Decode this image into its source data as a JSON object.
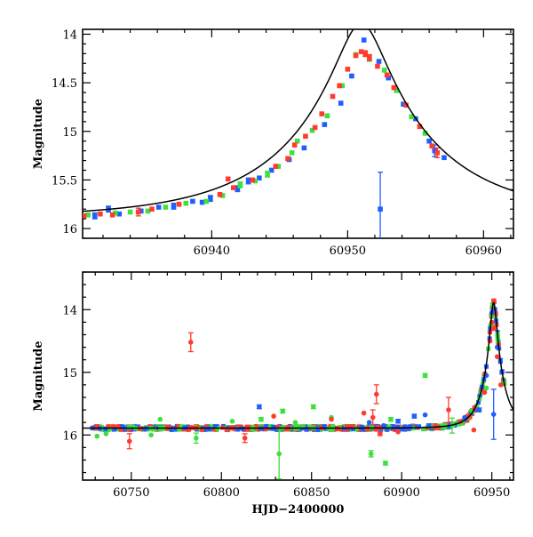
{
  "chart_data": [
    {
      "type": "scatter",
      "title": "",
      "xlabel": "",
      "ylabel": "Magnitude",
      "xlim": [
        60930.5,
        60962.2
      ],
      "ylim": [
        16.1,
        13.95
      ],
      "y_inverted": true,
      "x_ticks": [
        60940,
        60950,
        60960
      ],
      "y_ticks": [
        14,
        14.5,
        15,
        15.5,
        16
      ],
      "y_tick_labels": [
        "14",
        "14.5",
        "15",
        "15.5",
        "16"
      ],
      "series": [
        {
          "color": "#1f5fff",
          "points": [
            [
              60931.4,
              15.87,
              0.03
            ],
            [
              60932.4,
              15.8,
              0.03
            ],
            [
              60933.2,
              15.85,
              0.02
            ],
            [
              60934.8,
              15.82,
              0.02
            ],
            [
              60936.1,
              15.78,
              0.02
            ],
            [
              60937.2,
              15.77,
              0.03
            ],
            [
              60938.6,
              15.72,
              0.02
            ],
            [
              60939.3,
              15.73,
              0.02
            ],
            [
              60939.9,
              15.69,
              0.03
            ],
            [
              60941.9,
              15.59,
              0.03
            ],
            [
              60942.7,
              15.51,
              0.03
            ],
            [
              60943.5,
              15.48,
              0.02
            ],
            [
              60944.4,
              15.4,
              0.02
            ],
            [
              60945.7,
              15.29,
              0.02
            ],
            [
              60946.8,
              15.17,
              0.02
            ],
            [
              60948.3,
              14.93,
              0.02
            ],
            [
              60949.5,
              14.71,
              0.02
            ],
            [
              60950.3,
              14.43,
              0.02
            ],
            [
              60951.2,
              14.06,
              0.02
            ],
            [
              60952.3,
              14.28,
              0.02
            ],
            [
              60952.4,
              15.8,
              0.38
            ],
            [
              60953.0,
              14.45,
              0.02
            ],
            [
              60954.1,
              14.72,
              0.02
            ],
            [
              60955.0,
              14.87,
              0.02
            ],
            [
              60956.0,
              15.1,
              0.02
            ],
            [
              60956.4,
              15.2,
              0.06
            ],
            [
              60957.1,
              15.27,
              0.02
            ]
          ]
        },
        {
          "color": "#3ee03e",
          "points": [
            [
              60930.9,
              15.86,
              0.02
            ],
            [
              60932.9,
              15.84,
              0.02
            ],
            [
              60934.0,
              15.83,
              0.02
            ],
            [
              60935.3,
              15.82,
              0.02
            ],
            [
              60936.6,
              15.78,
              0.02
            ],
            [
              60938.1,
              15.74,
              0.02
            ],
            [
              60939.6,
              15.72,
              0.02
            ],
            [
              60940.8,
              15.66,
              0.02
            ],
            [
              60942.1,
              15.55,
              0.03
            ],
            [
              60943.2,
              15.51,
              0.02
            ],
            [
              60944.1,
              15.44,
              0.03
            ],
            [
              60944.9,
              15.36,
              0.02
            ],
            [
              60945.9,
              15.22,
              0.02
            ],
            [
              60946.3,
              15.1,
              0.02
            ],
            [
              60947.4,
              14.99,
              0.02
            ],
            [
              60948.5,
              14.84,
              0.02
            ],
            [
              60949.6,
              14.53,
              0.02
            ],
            [
              60950.6,
              14.21,
              0.02
            ],
            [
              60951.6,
              14.26,
              0.02
            ],
            [
              60952.7,
              14.37,
              0.02
            ],
            [
              60953.6,
              14.58,
              0.02
            ],
            [
              60954.7,
              14.85,
              0.02
            ],
            [
              60955.7,
              15.02,
              0.02
            ]
          ]
        },
        {
          "color": "#ff3b2f",
          "points": [
            [
              60930.6,
              15.87,
              0.02
            ],
            [
              60931.8,
              15.85,
              0.02
            ],
            [
              60932.7,
              15.86,
              0.02
            ],
            [
              60934.6,
              15.83,
              0.04
            ],
            [
              60935.6,
              15.8,
              0.02
            ],
            [
              60937.6,
              15.75,
              0.02
            ],
            [
              60940.6,
              15.65,
              0.02
            ],
            [
              60941.2,
              15.49,
              0.02
            ],
            [
              60941.6,
              15.58,
              0.02
            ],
            [
              60943.0,
              15.5,
              0.02
            ],
            [
              60944.7,
              15.36,
              0.02
            ],
            [
              60945.6,
              15.28,
              0.02
            ],
            [
              60946.1,
              15.14,
              0.02
            ],
            [
              60946.9,
              15.05,
              0.02
            ],
            [
              60947.6,
              14.96,
              0.02
            ],
            [
              60948.1,
              14.82,
              0.02
            ],
            [
              60948.9,
              14.64,
              0.02
            ],
            [
              60949.4,
              14.53,
              0.02
            ],
            [
              60950.0,
              14.36,
              0.02
            ],
            [
              60950.6,
              14.22,
              0.02
            ],
            [
              60951.0,
              14.18,
              0.02
            ],
            [
              60951.3,
              14.2,
              0.03
            ],
            [
              60951.6,
              14.24,
              0.03
            ],
            [
              60952.2,
              14.33,
              0.02
            ],
            [
              60952.9,
              14.42,
              0.02
            ],
            [
              60953.4,
              14.55,
              0.02
            ],
            [
              60954.3,
              14.73,
              0.02
            ],
            [
              60955.3,
              14.95,
              0.02
            ],
            [
              60956.2,
              15.15,
              0.02
            ],
            [
              60956.6,
              15.22,
              0.05
            ]
          ]
        }
      ],
      "model_curve": true
    },
    {
      "type": "scatter",
      "title": "",
      "xlabel": "HJD−2400000",
      "ylabel": "Magnitude",
      "xlim": [
        60723,
        60962
      ],
      "ylim": [
        16.72,
        13.4
      ],
      "y_inverted": true,
      "x_ticks": [
        60750,
        60800,
        60850,
        60900,
        60950
      ],
      "y_ticks": [
        14,
        15,
        16
      ],
      "y_tick_labels": [
        "14",
        "15",
        "16"
      ],
      "series": [
        {
          "color": "#1f5fff",
          "points": [
            [
              60821,
              15.55,
              0.03
            ],
            [
              60882,
              15.8,
              0.02
            ],
            [
              60890,
              15.85,
              0.02
            ],
            [
              60898,
              15.78,
              0.03
            ],
            [
              60907,
              15.7,
              0.03
            ],
            [
              60913,
              15.68,
              0.02
            ],
            [
              60935,
              15.72,
              0.02
            ],
            [
              60943,
              15.6,
              0.03
            ],
            [
              60947,
              15.05,
              0.02
            ],
            [
              60950,
              14.05,
              0.02
            ],
            [
              60951,
              15.67,
              0.4
            ],
            [
              60953,
              14.6,
              0.02
            ]
          ]
        },
        {
          "color": "#3ee03e",
          "points": [
            [
              60731,
              16.02,
              0.02
            ],
            [
              60736,
              15.98,
              0.02
            ],
            [
              60761,
              16.0,
              0.02
            ],
            [
              60766,
              15.75,
              0.02
            ],
            [
              60786,
              16.05,
              0.08
            ],
            [
              60806,
              15.78,
              0.02
            ],
            [
              60822,
              15.75,
              0.03
            ],
            [
              60832,
              16.3,
              0.4
            ],
            [
              60834,
              15.62,
              0.03
            ],
            [
              60841,
              15.8,
              0.02
            ],
            [
              60851,
              15.55,
              0.03
            ],
            [
              60861,
              15.72,
              0.02
            ],
            [
              60883,
              16.3,
              0.05
            ],
            [
              60891,
              16.45,
              0.03
            ],
            [
              60894,
              15.75,
              0.03
            ],
            [
              60913,
              15.05,
              0.03
            ],
            [
              60928,
              15.85,
              0.12
            ],
            [
              60947,
              15.25,
              0.02
            ],
            [
              60950,
              14.25,
              0.02
            ]
          ]
        },
        {
          "color": "#ff3b2f",
          "points": [
            [
              60749,
              16.1,
              0.12
            ],
            [
              60783,
              14.52,
              0.15
            ],
            [
              60813,
              16.05,
              0.07
            ],
            [
              60829,
              15.7,
              0.02
            ],
            [
              60861,
              15.75,
              0.02
            ],
            [
              60879,
              15.65,
              0.02
            ],
            [
              60884,
              15.72,
              0.12
            ],
            [
              60886,
              15.35,
              0.15
            ],
            [
              60888,
              15.98,
              0.03
            ],
            [
              60898,
              15.95,
              0.02
            ],
            [
              60926,
              15.6,
              0.2
            ],
            [
              60940,
              15.92,
              0.02
            ],
            [
              60946,
              15.32,
              0.02
            ],
            [
              60949,
              14.5,
              0.02
            ],
            [
              60950,
              14.2,
              0.02
            ],
            [
              60951,
              14.3,
              0.03
            ],
            [
              60953,
              14.75,
              0.02
            ],
            [
              60955,
              15.2,
              0.02
            ]
          ]
        }
      ],
      "model_curve": true
    }
  ]
}
